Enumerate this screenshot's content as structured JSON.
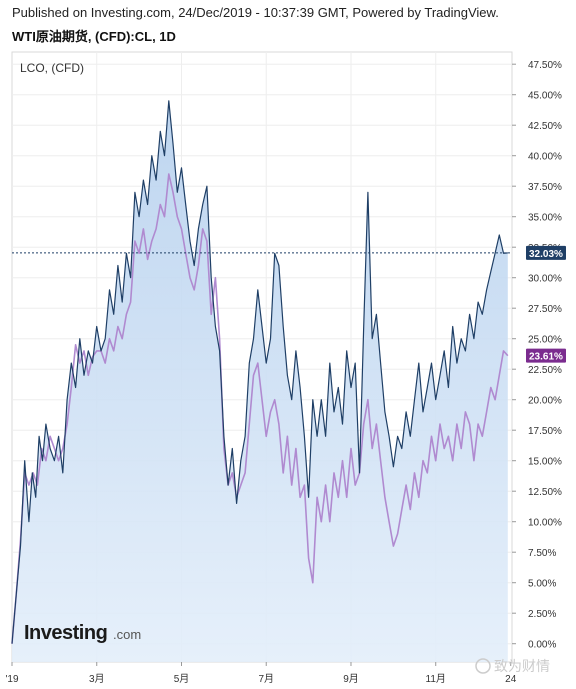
{
  "header": {
    "published": "Published on Investing.com, 24/Dec/2019 - 10:37:39 GMT, Powered by TradingView.",
    "title": "WTI原油期货, (CFD):CL, 1D"
  },
  "watermark": {
    "logo": "Investing",
    "logo_suffix": ".com",
    "weibo": "致为财情"
  },
  "chart_data": {
    "type": "line",
    "series_label": "LCO, (CFD)",
    "y_unit": "%",
    "ylim": [
      -1.5,
      48.5
    ],
    "y_ticks": [
      "47.50%",
      "45.00%",
      "42.50%",
      "40.00%",
      "37.50%",
      "35.00%",
      "32.50%",
      "30.00%",
      "27.50%",
      "25.00%",
      "22.50%",
      "20.00%",
      "17.50%",
      "15.00%",
      "12.50%",
      "10.00%",
      "7.50%",
      "5.00%",
      "2.50%",
      "0.00%"
    ],
    "y_tick_values": [
      47.5,
      45,
      42.5,
      40,
      37.5,
      35,
      32.5,
      30,
      27.5,
      25,
      22.5,
      20,
      17.5,
      15,
      12.5,
      10,
      7.5,
      5,
      2.5,
      0
    ],
    "x_ticks": [
      {
        "label": "'19",
        "x": 0
      },
      {
        "label": "3月",
        "x": 2
      },
      {
        "label": "5月",
        "x": 4
      },
      {
        "label": "7月",
        "x": 6
      },
      {
        "label": "9月",
        "x": 8
      },
      {
        "label": "11月",
        "x": 10
      },
      {
        "label": "24",
        "x": 11.77
      }
    ],
    "xlim": [
      0,
      11.8
    ],
    "grid": true,
    "series": [
      {
        "name": "WTI",
        "color": "#1f3f66",
        "last_value": 32.03,
        "badge": "32.03%",
        "badge_color": "#1f3f66",
        "points": [
          [
            0.0,
            0.0
          ],
          [
            0.1,
            4.0
          ],
          [
            0.2,
            8.0
          ],
          [
            0.3,
            15.0
          ],
          [
            0.4,
            10.0
          ],
          [
            0.48,
            14.0
          ],
          [
            0.56,
            12.0
          ],
          [
            0.64,
            17.0
          ],
          [
            0.72,
            15.0
          ],
          [
            0.8,
            18.0
          ],
          [
            0.9,
            16.0
          ],
          [
            1.0,
            15.0
          ],
          [
            1.1,
            17.0
          ],
          [
            1.2,
            14.0
          ],
          [
            1.3,
            20.0
          ],
          [
            1.4,
            23.0
          ],
          [
            1.5,
            21.0
          ],
          [
            1.6,
            25.0
          ],
          [
            1.7,
            22.0
          ],
          [
            1.8,
            24.0
          ],
          [
            1.9,
            23.0
          ],
          [
            2.0,
            26.0
          ],
          [
            2.1,
            24.0
          ],
          [
            2.2,
            25.0
          ],
          [
            2.3,
            29.0
          ],
          [
            2.4,
            27.0
          ],
          [
            2.5,
            31.0
          ],
          [
            2.6,
            28.0
          ],
          [
            2.7,
            32.0
          ],
          [
            2.8,
            30.0
          ],
          [
            2.9,
            37.0
          ],
          [
            3.0,
            35.0
          ],
          [
            3.1,
            38.0
          ],
          [
            3.2,
            36.0
          ],
          [
            3.3,
            40.0
          ],
          [
            3.4,
            38.0
          ],
          [
            3.5,
            42.0
          ],
          [
            3.6,
            40.0
          ],
          [
            3.7,
            44.5
          ],
          [
            3.8,
            41.0
          ],
          [
            3.9,
            37.0
          ],
          [
            4.0,
            39.0
          ],
          [
            4.1,
            36.0
          ],
          [
            4.2,
            33.0
          ],
          [
            4.3,
            31.0
          ],
          [
            4.4,
            34.0
          ],
          [
            4.5,
            36.0
          ],
          [
            4.6,
            37.5
          ],
          [
            4.7,
            30.0
          ],
          [
            4.8,
            26.0
          ],
          [
            4.9,
            24.0
          ],
          [
            5.0,
            17.0
          ],
          [
            5.1,
            13.0
          ],
          [
            5.2,
            16.0
          ],
          [
            5.3,
            11.5
          ],
          [
            5.4,
            15.0
          ],
          [
            5.5,
            17.0
          ],
          [
            5.6,
            23.0
          ],
          [
            5.7,
            25.0
          ],
          [
            5.8,
            29.0
          ],
          [
            5.9,
            26.0
          ],
          [
            6.0,
            23.0
          ],
          [
            6.1,
            25.0
          ],
          [
            6.2,
            32.0
          ],
          [
            6.3,
            31.0
          ],
          [
            6.4,
            26.0
          ],
          [
            6.5,
            22.0
          ],
          [
            6.6,
            20.0
          ],
          [
            6.7,
            24.0
          ],
          [
            6.8,
            21.0
          ],
          [
            6.9,
            17.0
          ],
          [
            7.0,
            12.0
          ],
          [
            7.1,
            20.0
          ],
          [
            7.2,
            17.0
          ],
          [
            7.3,
            20.0
          ],
          [
            7.4,
            17.0
          ],
          [
            7.5,
            23.0
          ],
          [
            7.6,
            19.0
          ],
          [
            7.7,
            21.0
          ],
          [
            7.8,
            18.0
          ],
          [
            7.9,
            24.0
          ],
          [
            8.0,
            21.0
          ],
          [
            8.1,
            23.0
          ],
          [
            8.2,
            14.0
          ],
          [
            8.3,
            26.0
          ],
          [
            8.4,
            37.0
          ],
          [
            8.5,
            25.0
          ],
          [
            8.6,
            27.0
          ],
          [
            8.7,
            23.0
          ],
          [
            8.8,
            19.0
          ],
          [
            8.9,
            17.0
          ],
          [
            9.0,
            14.5
          ],
          [
            9.1,
            17.0
          ],
          [
            9.2,
            16.0
          ],
          [
            9.3,
            19.0
          ],
          [
            9.4,
            17.0
          ],
          [
            9.5,
            20.0
          ],
          [
            9.6,
            23.0
          ],
          [
            9.7,
            19.0
          ],
          [
            9.8,
            21.0
          ],
          [
            9.9,
            23.0
          ],
          [
            10.0,
            20.0
          ],
          [
            10.1,
            22.0
          ],
          [
            10.2,
            24.0
          ],
          [
            10.3,
            21.0
          ],
          [
            10.4,
            26.0
          ],
          [
            10.5,
            23.0
          ],
          [
            10.6,
            25.0
          ],
          [
            10.7,
            24.0
          ],
          [
            10.8,
            27.0
          ],
          [
            10.9,
            25.0
          ],
          [
            11.0,
            28.0
          ],
          [
            11.1,
            27.0
          ],
          [
            11.2,
            29.0
          ],
          [
            11.3,
            30.5
          ],
          [
            11.4,
            32.0
          ],
          [
            11.5,
            33.5
          ],
          [
            11.6,
            32.0
          ],
          [
            11.7,
            32.03
          ]
        ]
      },
      {
        "name": "LCO",
        "color": "#b08ad0",
        "last_value": 23.61,
        "badge": "23.61%",
        "badge_color": "#7b2c8f",
        "points": [
          [
            0.0,
            0.0
          ],
          [
            0.1,
            4.0
          ],
          [
            0.2,
            8.5
          ],
          [
            0.3,
            14.0
          ],
          [
            0.4,
            13.0
          ],
          [
            0.5,
            14.0
          ],
          [
            0.6,
            13.0
          ],
          [
            0.7,
            16.0
          ],
          [
            0.8,
            15.0
          ],
          [
            0.9,
            17.0
          ],
          [
            1.0,
            16.0
          ],
          [
            1.1,
            15.0
          ],
          [
            1.2,
            16.0
          ],
          [
            1.3,
            18.0
          ],
          [
            1.4,
            21.0
          ],
          [
            1.5,
            24.5
          ],
          [
            1.6,
            23.0
          ],
          [
            1.7,
            24.0
          ],
          [
            1.8,
            22.0
          ],
          [
            1.9,
            23.5
          ],
          [
            2.0,
            24.0
          ],
          [
            2.1,
            24.0
          ],
          [
            2.2,
            23.0
          ],
          [
            2.3,
            25.0
          ],
          [
            2.4,
            24.0
          ],
          [
            2.5,
            26.0
          ],
          [
            2.6,
            25.0
          ],
          [
            2.7,
            27.0
          ],
          [
            2.8,
            28.0
          ],
          [
            2.9,
            33.0
          ],
          [
            3.0,
            32.0
          ],
          [
            3.1,
            34.0
          ],
          [
            3.2,
            31.5
          ],
          [
            3.3,
            33.0
          ],
          [
            3.4,
            34.0
          ],
          [
            3.5,
            36.0
          ],
          [
            3.6,
            35.0
          ],
          [
            3.7,
            38.5
          ],
          [
            3.8,
            37.0
          ],
          [
            3.9,
            35.0
          ],
          [
            4.0,
            34.0
          ],
          [
            4.1,
            32.0
          ],
          [
            4.2,
            30.0
          ],
          [
            4.3,
            29.0
          ],
          [
            4.4,
            31.0
          ],
          [
            4.5,
            34.0
          ],
          [
            4.6,
            33.0
          ],
          [
            4.7,
            27.0
          ],
          [
            4.8,
            30.0
          ],
          [
            4.9,
            25.0
          ],
          [
            5.0,
            16.0
          ],
          [
            5.1,
            13.0
          ],
          [
            5.2,
            14.0
          ],
          [
            5.3,
            12.0
          ],
          [
            5.4,
            13.0
          ],
          [
            5.5,
            14.0
          ],
          [
            5.6,
            18.0
          ],
          [
            5.7,
            22.0
          ],
          [
            5.8,
            23.0
          ],
          [
            5.9,
            20.0
          ],
          [
            6.0,
            17.0
          ],
          [
            6.1,
            19.0
          ],
          [
            6.2,
            20.0
          ],
          [
            6.3,
            18.0
          ],
          [
            6.4,
            14.0
          ],
          [
            6.5,
            17.0
          ],
          [
            6.6,
            13.0
          ],
          [
            6.7,
            16.0
          ],
          [
            6.8,
            12.0
          ],
          [
            6.9,
            13.0
          ],
          [
            7.0,
            7.0
          ],
          [
            7.1,
            5.0
          ],
          [
            7.2,
            12.0
          ],
          [
            7.3,
            10.0
          ],
          [
            7.4,
            13.0
          ],
          [
            7.5,
            10.0
          ],
          [
            7.6,
            14.0
          ],
          [
            7.7,
            12.0
          ],
          [
            7.8,
            15.0
          ],
          [
            7.9,
            12.0
          ],
          [
            8.0,
            16.0
          ],
          [
            8.1,
            13.0
          ],
          [
            8.2,
            14.0
          ],
          [
            8.3,
            18.0
          ],
          [
            8.4,
            20.0
          ],
          [
            8.5,
            16.0
          ],
          [
            8.6,
            18.0
          ],
          [
            8.7,
            15.0
          ],
          [
            8.8,
            12.0
          ],
          [
            8.9,
            10.0
          ],
          [
            9.0,
            8.0
          ],
          [
            9.1,
            9.0
          ],
          [
            9.2,
            11.0
          ],
          [
            9.3,
            13.0
          ],
          [
            9.4,
            11.0
          ],
          [
            9.5,
            14.0
          ],
          [
            9.6,
            12.0
          ],
          [
            9.7,
            15.0
          ],
          [
            9.8,
            14.0
          ],
          [
            9.9,
            17.0
          ],
          [
            10.0,
            15.0
          ],
          [
            10.1,
            18.0
          ],
          [
            10.2,
            16.0
          ],
          [
            10.3,
            17.0
          ],
          [
            10.4,
            15.0
          ],
          [
            10.5,
            18.0
          ],
          [
            10.6,
            16.0
          ],
          [
            10.7,
            19.0
          ],
          [
            10.8,
            18.0
          ],
          [
            10.9,
            15.0
          ],
          [
            11.0,
            18.0
          ],
          [
            11.1,
            17.0
          ],
          [
            11.2,
            19.0
          ],
          [
            11.3,
            21.0
          ],
          [
            11.4,
            20.0
          ],
          [
            11.5,
            22.0
          ],
          [
            11.6,
            24.0
          ],
          [
            11.7,
            23.61
          ]
        ]
      }
    ]
  }
}
